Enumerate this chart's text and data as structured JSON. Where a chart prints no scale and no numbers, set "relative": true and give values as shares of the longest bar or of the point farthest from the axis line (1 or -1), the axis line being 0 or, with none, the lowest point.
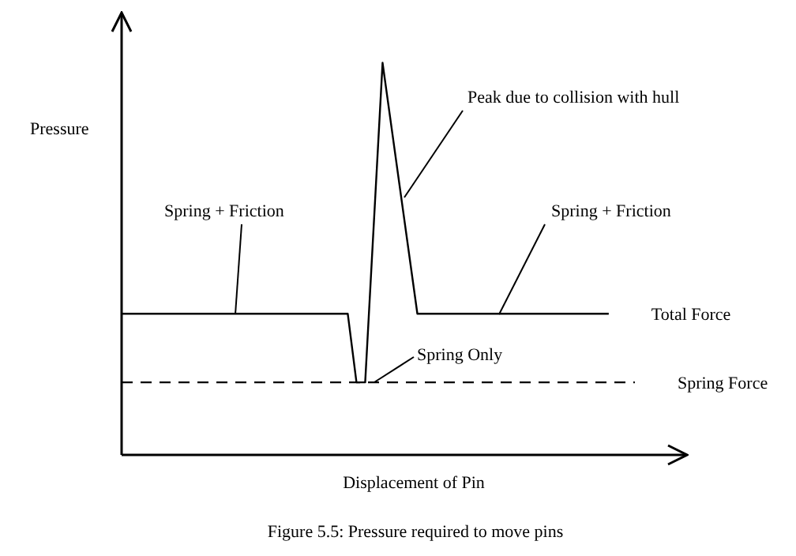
{
  "chart_data": {
    "type": "line",
    "relative": true,
    "ylabel": "Pressure",
    "xlabel": "Displacement of Pin",
    "legend": false,
    "marker": "none",
    "categories": [
      null,
      null,
      null,
      null,
      null,
      null,
      null,
      null,
      null,
      null,
      null,
      null,
      null,
      null,
      null,
      null,
      null,
      null,
      null,
      null,
      null,
      null,
      null,
      null,
      null,
      null,
      null,
      null,
      null,
      null,
      null,
      null,
      null,
      null,
      null,
      null,
      null,
      null,
      null,
      null,
      null,
      null,
      null,
      null,
      null,
      null,
      null,
      null,
      null,
      null,
      null,
      null,
      null,
      null,
      null,
      null,
      null,
      null,
      null,
      null,
      null,
      null,
      null,
      null,
      null,
      null
    ],
    "series": [
      {
        "name": "Total Force",
        "color": "#000000",
        "line_style": "solid",
        "values": [
          0.36,
          null,
          null,
          null,
          null,
          null,
          null,
          null,
          null,
          null,
          null,
          null,
          null,
          null,
          null,
          null,
          null,
          null,
          null,
          null,
          null,
          null,
          null,
          null,
          null,
          null,
          0.36,
          0.185,
          0.185,
          null,
          1,
          null,
          null,
          null,
          0.36,
          null,
          null,
          null,
          null,
          null,
          null,
          null,
          null,
          null,
          null,
          null,
          null,
          null,
          null,
          null,
          null,
          null,
          null,
          null,
          null,
          null,
          0.36,
          null,
          null,
          null,
          null,
          null,
          null,
          null,
          null,
          null
        ]
      },
      {
        "name": "Spring Force",
        "color": "#000000",
        "line_style": "dashed",
        "values": [
          0.185,
          null,
          null,
          null,
          null,
          null,
          null,
          null,
          null,
          null,
          null,
          null,
          null,
          null,
          null,
          null,
          null,
          null,
          null,
          null,
          null,
          null,
          null,
          null,
          null,
          null,
          null,
          null,
          null,
          null,
          null,
          null,
          null,
          null,
          null,
          null,
          null,
          null,
          null,
          null,
          null,
          null,
          null,
          null,
          null,
          null,
          null,
          null,
          null,
          null,
          null,
          null,
          null,
          null,
          null,
          null,
          null,
          null,
          null,
          0.185,
          null,
          null,
          null,
          null,
          null,
          null
        ]
      }
    ],
    "annotations": [
      "Peak due to collision with hull",
      "Spring + Friction",
      "Spring + Friction",
      "Spring Only",
      "Figure 5.5: Pressure required to move pins"
    ]
  }
}
